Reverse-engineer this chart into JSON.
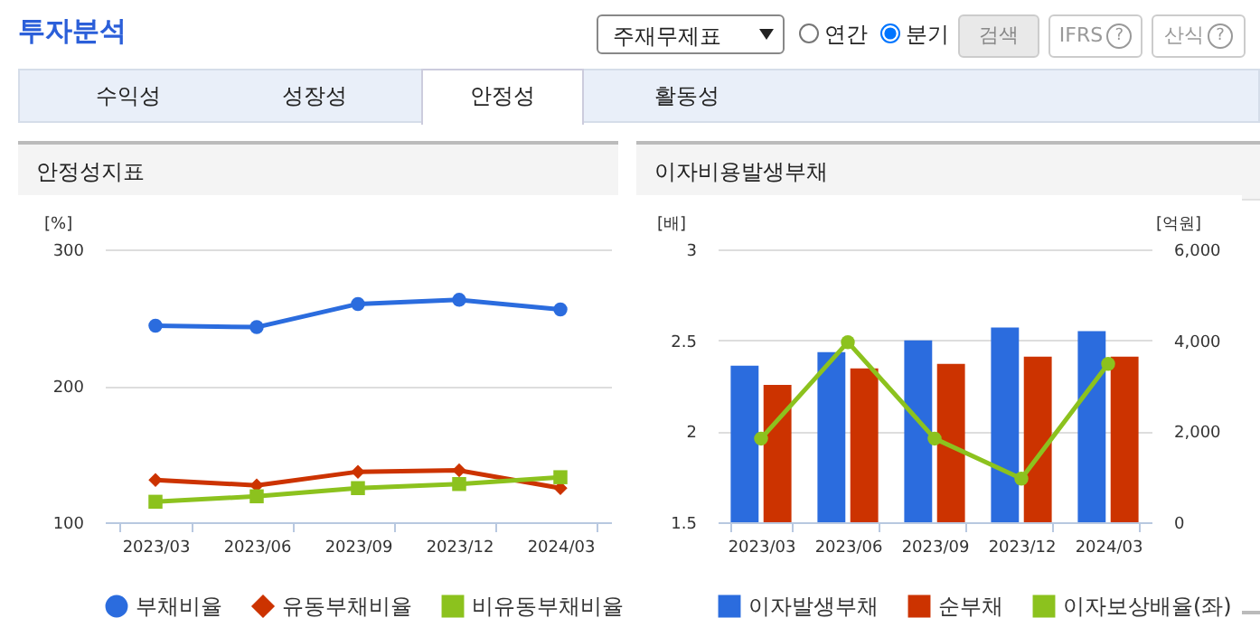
{
  "chart_data": [
    {
      "type": "other",
      "title": "투자분석",
      "annotations": [
        "주재무제표",
        "연간",
        "분기",
        "검색",
        "IFRS",
        "산식",
        "수익성",
        "성장성",
        "안정성",
        "활동성",
        "?"
      ]
    },
    {
      "type": "line",
      "title": "안정성지표",
      "ylabel": "[%]",
      "categories": [
        "2023/03",
        "2023/06",
        "2023/09",
        "2023/12",
        "2024/03"
      ],
      "ylim": [
        100,
        300
      ],
      "yticks": [
        100,
        200,
        300
      ],
      "grid": "y",
      "legend": "bottom",
      "series": [
        {
          "name": "부채비율",
          "color": "#2b6cde",
          "marker": "circle",
          "values": [
            244,
            243,
            260,
            263,
            256
          ]
        },
        {
          "name": "유동부채비율",
          "color": "#cc3300",
          "marker": "diamond",
          "values": [
            131,
            127,
            137,
            138,
            125
          ]
        },
        {
          "name": "비유동부채비율",
          "color": "#8cc21e",
          "marker": "square",
          "values": [
            115,
            119,
            125,
            128,
            133
          ]
        }
      ]
    },
    {
      "type": "bar",
      "title": "이자비용발생부채",
      "ylabel": "[배]",
      "y2label": "[억원]",
      "categories": [
        "2023/03",
        "2023/06",
        "2023/09",
        "2023/12",
        "2024/03"
      ],
      "ylim": [
        1.5,
        3
      ],
      "yticks": [
        1.5,
        2,
        2.5,
        3
      ],
      "y2lim": [
        0,
        6000
      ],
      "y2ticks": [
        0,
        {
          "value": 2000,
          "label": "2,000"
        },
        {
          "value": 4000,
          "label": "4,000"
        },
        {
          "value": 6000,
          "label": "6,000"
        }
      ],
      "grid": "y",
      "legend": "bottom",
      "series": [
        {
          "name": "이자발생부채",
          "color": "#2b6cde",
          "axis": "y2",
          "values": [
            3440,
            3740,
            4000,
            4280,
            4200
          ]
        },
        {
          "name": "순부채",
          "color": "#cc3300",
          "axis": "y2",
          "values": [
            3020,
            3380,
            3480,
            3640,
            3640
          ]
        },
        {
          "name": "이자보상배율(좌)",
          "type": "line",
          "color": "#8cc21e",
          "marker": "circle",
          "values": [
            1.96,
            2.49,
            1.96,
            1.74,
            2.37
          ]
        }
      ]
    }
  ]
}
